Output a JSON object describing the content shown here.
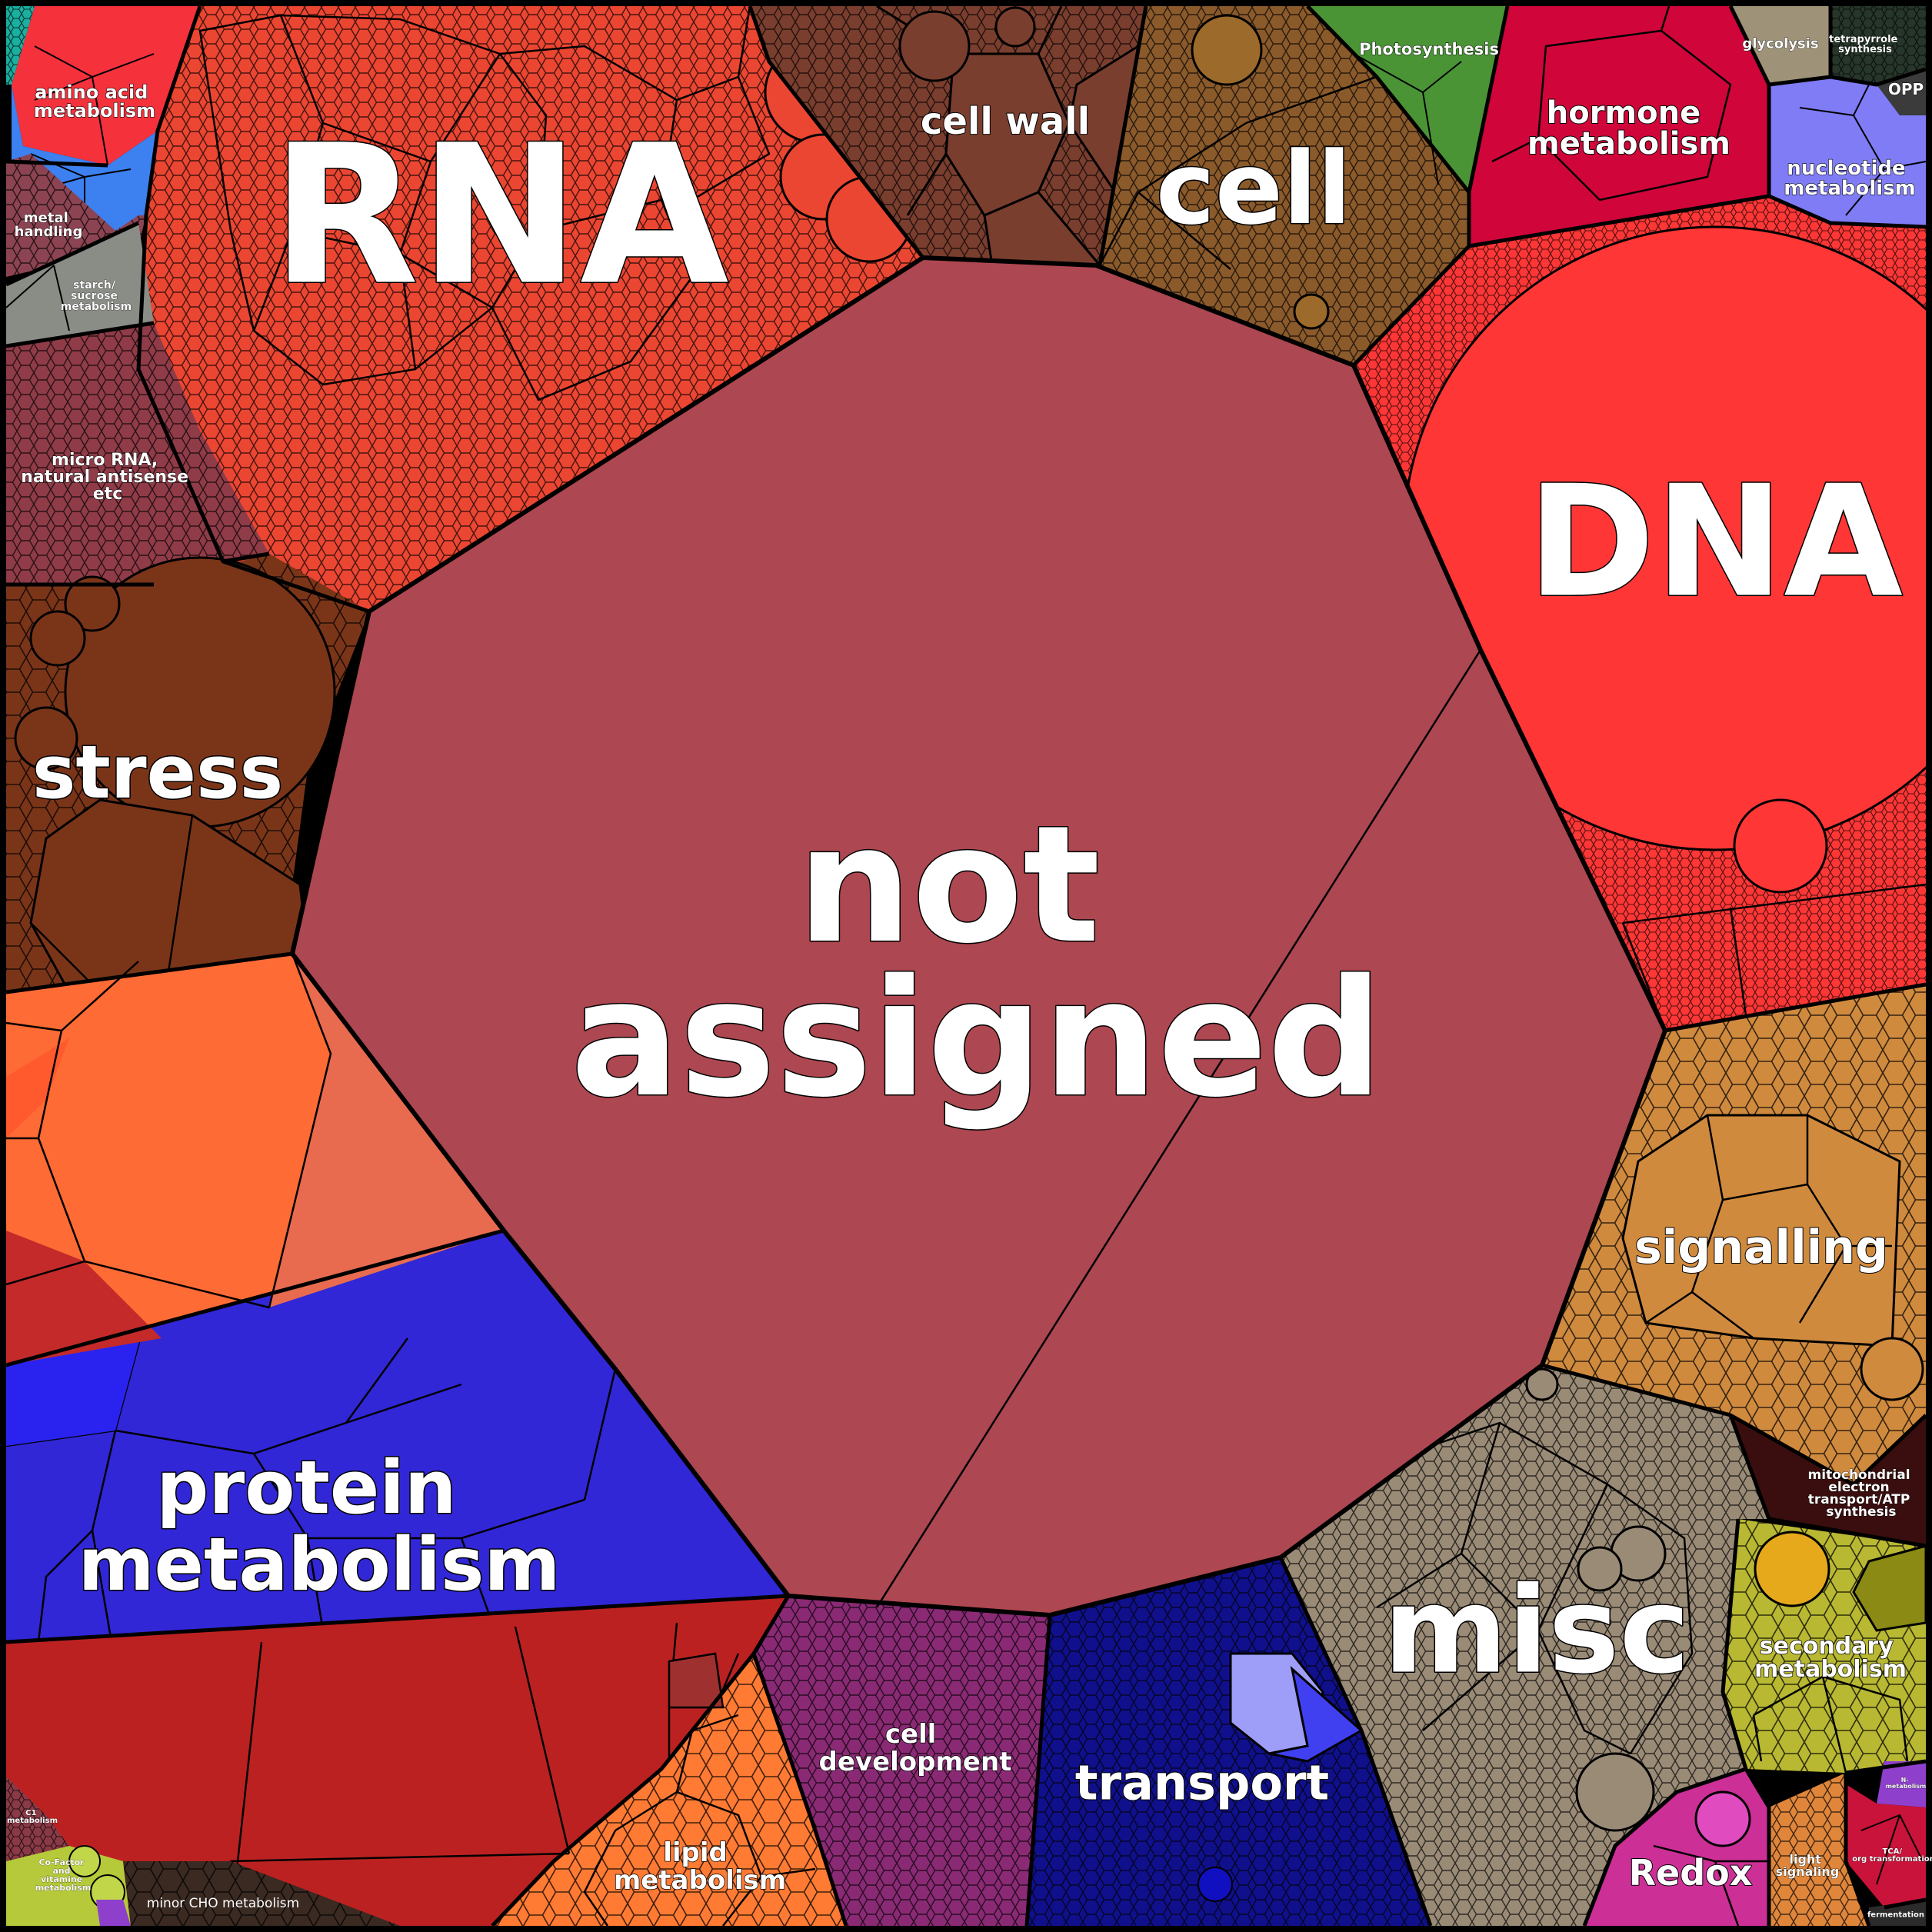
{
  "treemap": {
    "type": "voronoi-treemap",
    "categories": [
      {
        "key": "not_assigned",
        "label": "not assigned",
        "color": "#AD4751"
      },
      {
        "key": "rna",
        "label": "RNA",
        "color": "#EB4632"
      },
      {
        "key": "dna",
        "label": "DNA",
        "color": "#FF3636"
      },
      {
        "key": "protein_metabolism",
        "label": "protein metabolism",
        "color": "#3127D6"
      },
      {
        "key": "misc",
        "label": "misc",
        "color": "#9A8B77"
      },
      {
        "key": "stress",
        "label": "stress",
        "color": "#7A3519"
      },
      {
        "key": "cell",
        "label": "cell",
        "color": "#8B5A2B"
      },
      {
        "key": "signalling",
        "label": "signalling",
        "color": "#D08A3E"
      },
      {
        "key": "transport",
        "label": "transport",
        "color": "#10108C"
      },
      {
        "key": "cell_development",
        "label": "cell development",
        "color": "#8A2A74"
      },
      {
        "key": "lipid_metabolism",
        "label": "lipid metabolism",
        "color": "#FF7A33"
      },
      {
        "key": "cell_wall",
        "label": "cell wall",
        "color": "#7A3E2E"
      },
      {
        "key": "hormone_metabolism",
        "label": "hormone metabolism",
        "color": "#D0053A"
      },
      {
        "key": "amino_acid_metabolism",
        "label": "amino acid metabolism",
        "color": "#F5313C"
      },
      {
        "key": "micro_rna",
        "label": "micro RNA, natural antisense etc",
        "color": "#8F3C48"
      },
      {
        "key": "secondary_metabolism",
        "label": "secondary metabolism",
        "color": "#B8B833"
      },
      {
        "key": "redox",
        "label": "Redox",
        "color": "#CC2F96"
      },
      {
        "key": "nucleotide_metabolism",
        "label": "nucleotide metabolism",
        "color": "#7F7CF5"
      },
      {
        "key": "photosynthesis",
        "label": "Photosynthesis",
        "color": "#4A9436"
      },
      {
        "key": "mitochondrial",
        "label": "mitochondrial electron transport/ATP synthesis",
        "color": "#3A0E0E"
      },
      {
        "key": "glycolysis",
        "label": "glycolysis",
        "color": "#9E9278"
      },
      {
        "key": "tetrapyrrole",
        "label": "tetrapyrrole synthesis",
        "color": "#27362A"
      },
      {
        "key": "opp",
        "label": "OPP",
        "color": "#3B3B3B"
      },
      {
        "key": "metal_handling",
        "label": "metal handling",
        "color": "#8C4452"
      },
      {
        "key": "starch_sucrose",
        "label": "starch/ sucrose metabolism",
        "color": "#8A8C86"
      },
      {
        "key": "minor_cho",
        "label": "minor CHO metabolism",
        "color": "#3A2A22"
      },
      {
        "key": "cofactor_vitamine",
        "label": "Co-Factor and vitamine metabolism",
        "color": "#B5C93A"
      },
      {
        "key": "c1_metabolism",
        "label": "C1 metabolism",
        "color": "#8A3A47"
      },
      {
        "key": "light_signaling",
        "label": "light signaling",
        "color": "#E0863B"
      },
      {
        "key": "tca",
        "label": "TCA/ org transformation",
        "color": "#C9133A"
      },
      {
        "key": "fermentation",
        "label": "fermentation",
        "color": "#2B2B2B"
      },
      {
        "key": "n_metabolism",
        "label": "N-metabolism",
        "color": "#8E3FCC"
      }
    ]
  }
}
